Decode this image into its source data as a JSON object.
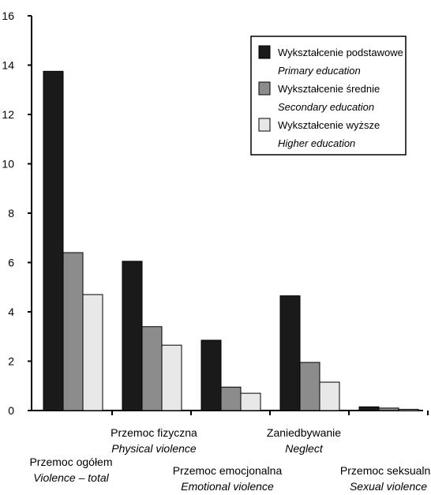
{
  "chart_data": {
    "type": "bar",
    "title": "",
    "xlabel": "",
    "ylabel": "",
    "ylim": [
      0,
      16
    ],
    "yticks": [
      0,
      2,
      4,
      6,
      8,
      10,
      12,
      14,
      16
    ],
    "grid": false,
    "legend_placement": "top-right",
    "categories": [
      {
        "pl": "Przemoc ogółem",
        "en": "Violence – total"
      },
      {
        "pl": "Przemoc fizyczna",
        "en": "Physical violence"
      },
      {
        "pl": "Przemoc emocjonalna",
        "en": "Emotional violence"
      },
      {
        "pl": "Zaniedbywanie",
        "en": "Neglect"
      },
      {
        "pl": "Przemoc seksualna",
        "en": "Sexual violence"
      }
    ],
    "series": [
      {
        "name": "Wykształcenie podstawowe",
        "name_en": "Primary education",
        "color": "#1a1a1a",
        "values": [
          13.75,
          6.05,
          2.85,
          4.65,
          0.15
        ]
      },
      {
        "name": "Wykształcenie średnie",
        "name_en": "Secondary education",
        "color": "#8c8c8c",
        "values": [
          6.4,
          3.4,
          0.95,
          1.95,
          0.1
        ]
      },
      {
        "name": "Wykształcenie wyższe",
        "name_en": "Higher education",
        "color": "#e8e8e8",
        "values": [
          4.7,
          2.65,
          0.7,
          1.15,
          0.05
        ]
      }
    ]
  }
}
